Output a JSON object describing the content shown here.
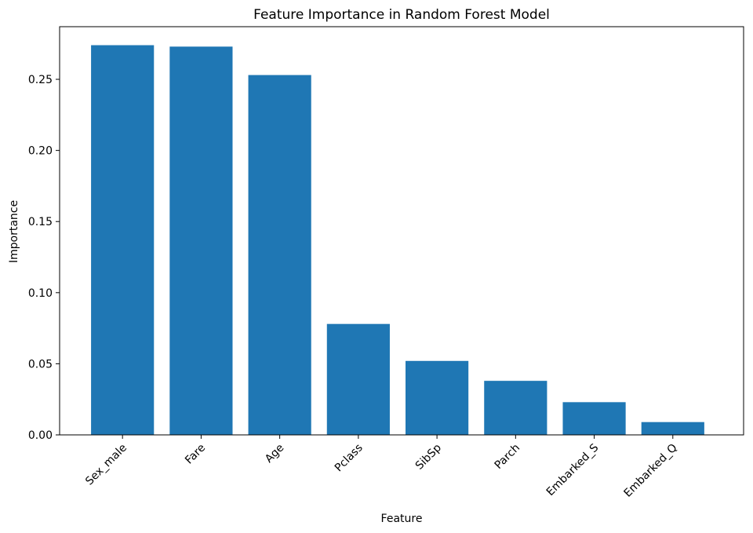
{
  "chart_data": {
    "type": "bar",
    "title": "Feature Importance in Random Forest Model",
    "xlabel": "Feature",
    "ylabel": "Importance",
    "categories": [
      "Sex_male",
      "Fare",
      "Age",
      "Pclass",
      "SibSp",
      "Parch",
      "Embarked_S",
      "Embarked_Q"
    ],
    "values": [
      0.274,
      0.273,
      0.253,
      0.078,
      0.052,
      0.038,
      0.023,
      0.009
    ],
    "ylim": [
      0,
      0.287
    ],
    "yticks": [
      0.0,
      0.05,
      0.1,
      0.15,
      0.2,
      0.25
    ],
    "ytick_labels": [
      "0.00",
      "0.05",
      "0.10",
      "0.15",
      "0.20",
      "0.25"
    ],
    "bar_color": "#1f77b4",
    "grid": false
  }
}
